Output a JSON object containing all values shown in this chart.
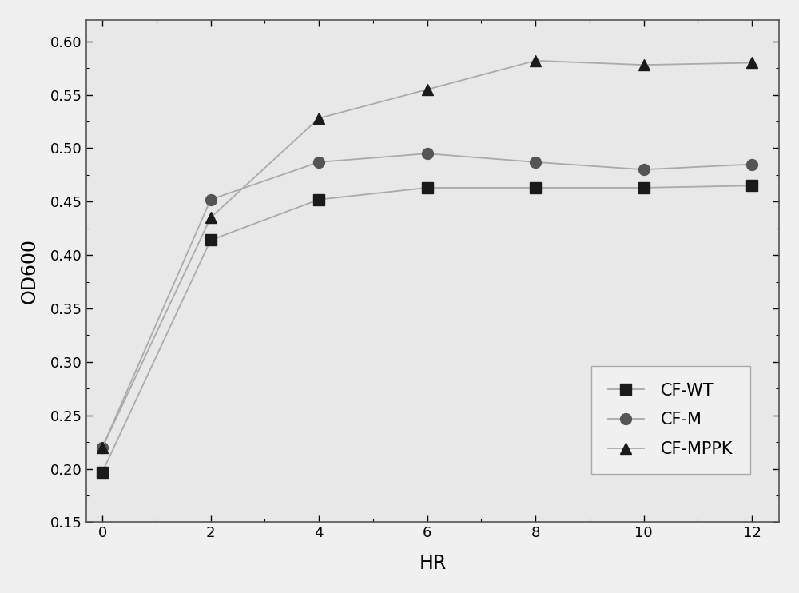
{
  "x": [
    0,
    2,
    4,
    6,
    8,
    10,
    12
  ],
  "CF_WT": [
    0.197,
    0.414,
    0.452,
    0.463,
    0.463,
    0.463,
    0.465
  ],
  "CF_M": [
    0.22,
    0.452,
    0.487,
    0.495,
    0.487,
    0.48,
    0.485
  ],
  "CF_MPPK": [
    0.22,
    0.435,
    0.528,
    0.555,
    0.582,
    0.578,
    0.58
  ],
  "line_color": "#aaaaaa",
  "marker_color_wt": "#1a1a1a",
  "marker_color_m": "#555555",
  "marker_color_mppk": "#1a1a1a",
  "background_color": "#f0f0f0",
  "plot_bg_color": "#e8e8e8",
  "xlabel": "HR",
  "ylabel": "OD600",
  "ylim": [
    0.15,
    0.62
  ],
  "xlim": [
    -0.3,
    12.5
  ],
  "yticks": [
    0.15,
    0.2,
    0.25,
    0.3,
    0.35,
    0.4,
    0.45,
    0.5,
    0.55,
    0.6
  ],
  "xticks": [
    0,
    2,
    4,
    6,
    8,
    10,
    12
  ],
  "legend_labels": [
    "CF-WT",
    "CF-M",
    "CF-MPPK"
  ],
  "figsize": [
    10.0,
    7.42
  ],
  "dpi": 100
}
